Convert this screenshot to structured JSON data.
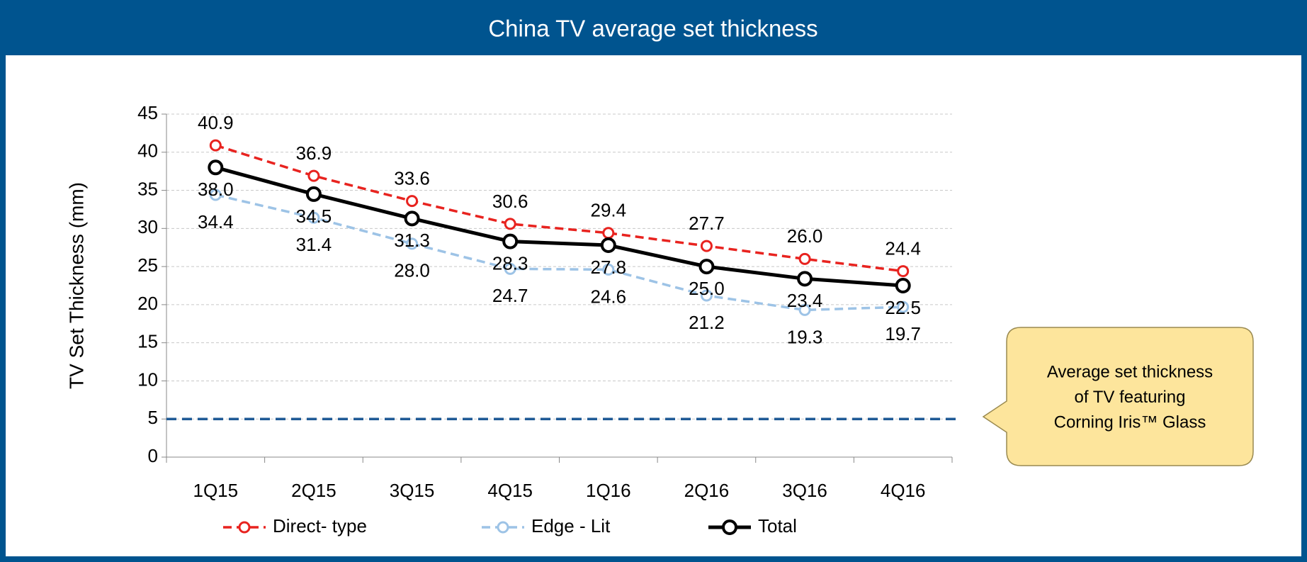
{
  "chart_data": {
    "type": "line",
    "title": "China TV average set thickness",
    "y_label": "TV Set Thickness (mm)",
    "categories": [
      "1Q15",
      "2Q15",
      "3Q15",
      "4Q15",
      "1Q16",
      "2Q16",
      "3Q16",
      "4Q16"
    ],
    "series": [
      {
        "name": "Direct- type",
        "color": "#e8231f",
        "dashed": true,
        "values": [
          40.9,
          36.9,
          33.6,
          30.6,
          29.4,
          27.7,
          26.0,
          24.4
        ],
        "value_labels": [
          "40.9",
          "36.9",
          "33.6",
          "30.6",
          "29.4",
          "27.7",
          "26.0",
          "24.4"
        ]
      },
      {
        "name": "Edge - Lit",
        "color": "#9dc3e6",
        "dashed": true,
        "values": [
          34.4,
          31.4,
          28.0,
          24.7,
          24.6,
          21.2,
          19.3,
          19.7
        ],
        "value_labels": [
          "34.4",
          "31.4",
          "28.0",
          "24.7",
          "24.6",
          "21.2",
          "19.3",
          "19.7"
        ]
      },
      {
        "name": "Total",
        "color": "#000000",
        "dashed": false,
        "values": [
          38.0,
          34.5,
          31.3,
          28.3,
          27.8,
          25.0,
          23.4,
          22.5
        ],
        "value_labels": [
          "38.0",
          "34.5",
          "31.3",
          "28.3",
          "27.8",
          "25.0",
          "23.4",
          "22.5"
        ]
      }
    ],
    "reference_line": {
      "value": 5,
      "color": "#1f5a96"
    },
    "annotation": [
      "Average set thickness",
      "of TV featuring",
      "Corning Iris™ Glass"
    ],
    "ylim": [
      0,
      45
    ],
    "yticks": [
      0,
      5,
      10,
      15,
      20,
      25,
      30,
      35,
      40,
      45
    ],
    "grid": true,
    "legend": "bottom"
  }
}
